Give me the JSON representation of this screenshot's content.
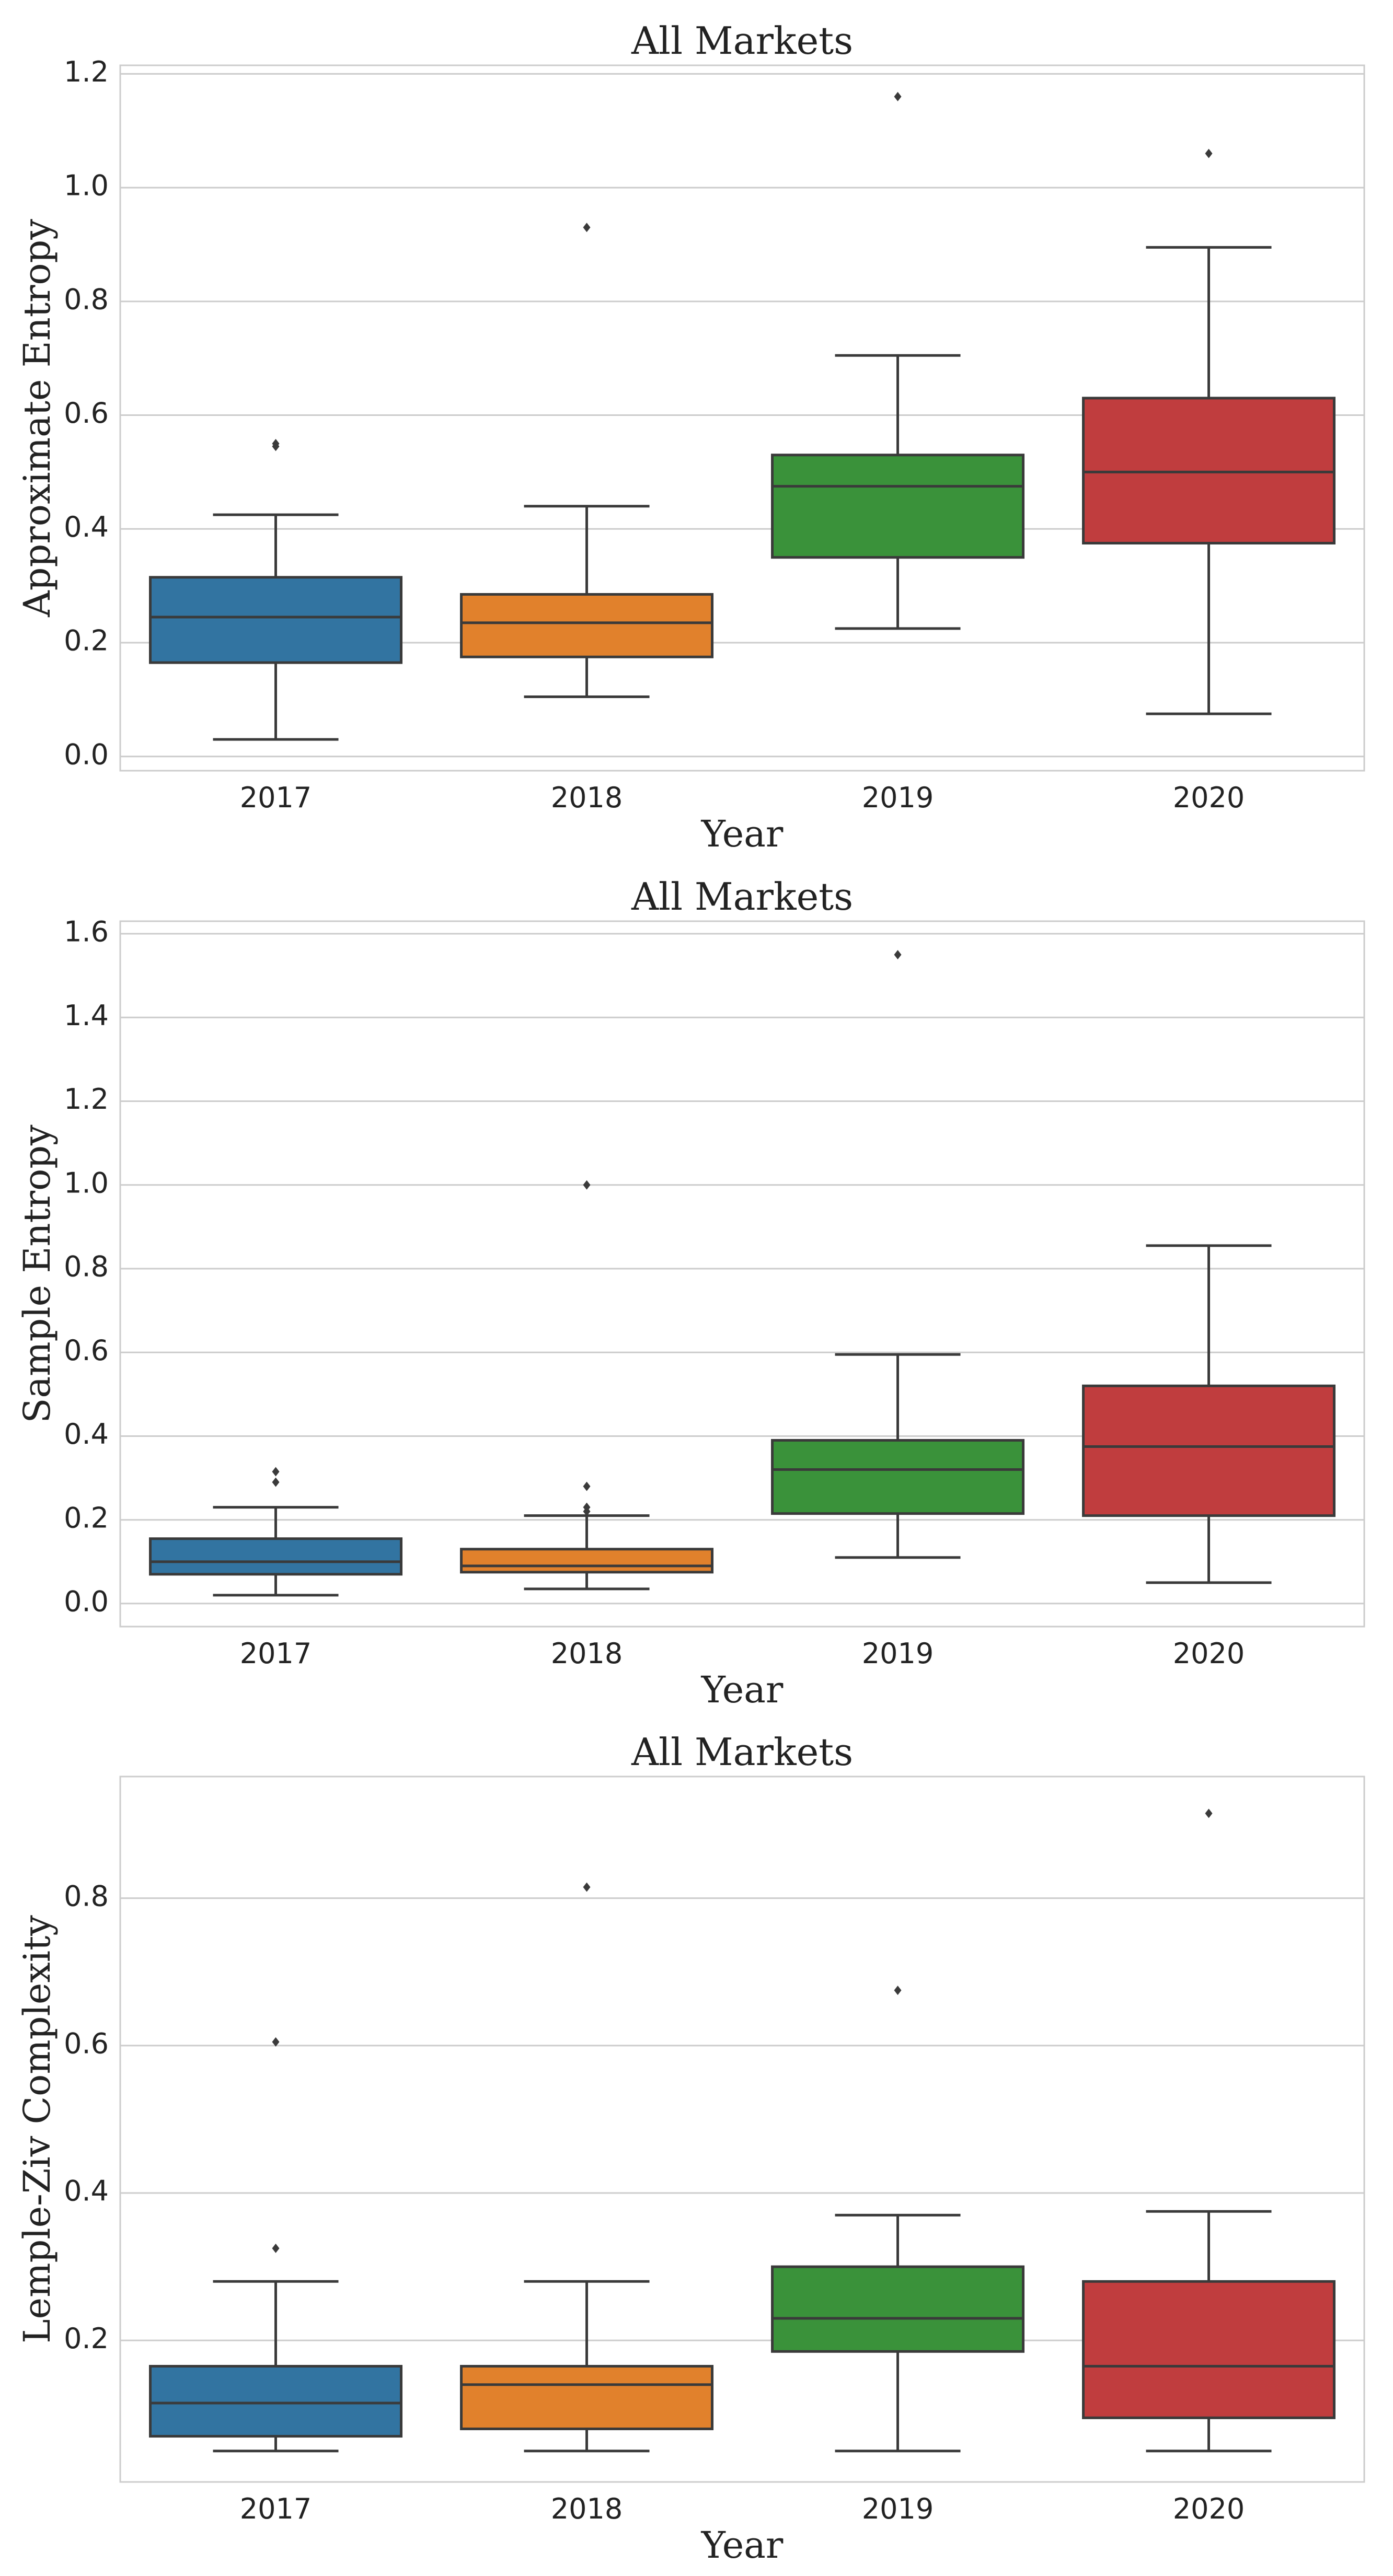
{
  "chart_data": [
    {
      "type": "box",
      "title": "All Markets",
      "xlabel": "Year",
      "ylabel": "Approximate Entropy",
      "categories": [
        "2017",
        "2018",
        "2019",
        "2020"
      ],
      "colors": [
        "#3274a1",
        "#e1812c",
        "#3a923a",
        "#c03d3e"
      ],
      "ylim": [
        -0.025,
        1.215
      ],
      "yticks": [
        0.0,
        0.2,
        0.4,
        0.6,
        0.8,
        1.0,
        1.2
      ],
      "ytick_labels": [
        "0.0",
        "0.2",
        "0.4",
        "0.6",
        "0.8",
        "1.0",
        "1.2"
      ],
      "boxes": [
        {
          "whislo": 0.03,
          "q1": 0.165,
          "med": 0.245,
          "q3": 0.315,
          "whishi": 0.425,
          "fliers": [
            0.545,
            0.55
          ]
        },
        {
          "whislo": 0.105,
          "q1": 0.175,
          "med": 0.235,
          "q3": 0.285,
          "whishi": 0.44,
          "fliers": [
            0.93
          ]
        },
        {
          "whislo": 0.225,
          "q1": 0.35,
          "med": 0.475,
          "q3": 0.53,
          "whishi": 0.705,
          "fliers": [
            1.16
          ]
        },
        {
          "whislo": 0.075,
          "q1": 0.375,
          "med": 0.5,
          "q3": 0.63,
          "whishi": 0.895,
          "fliers": [
            1.06
          ]
        }
      ]
    },
    {
      "type": "box",
      "title": "All Markets",
      "xlabel": "Year",
      "ylabel": "Sample Entropy",
      "categories": [
        "2017",
        "2018",
        "2019",
        "2020"
      ],
      "colors": [
        "#3274a1",
        "#e1812c",
        "#3a923a",
        "#c03d3e"
      ],
      "ylim": [
        -0.055,
        1.63
      ],
      "yticks": [
        0.0,
        0.2,
        0.4,
        0.6,
        0.8,
        1.0,
        1.2,
        1.4,
        1.6
      ],
      "ytick_labels": [
        "0.0",
        "0.2",
        "0.4",
        "0.6",
        "0.8",
        "1.0",
        "1.2",
        "1.4",
        "1.6"
      ],
      "boxes": [
        {
          "whislo": 0.02,
          "q1": 0.07,
          "med": 0.1,
          "q3": 0.155,
          "whishi": 0.23,
          "fliers": [
            0.29,
            0.315
          ]
        },
        {
          "whislo": 0.035,
          "q1": 0.075,
          "med": 0.09,
          "q3": 0.13,
          "whishi": 0.21,
          "fliers": [
            0.22,
            0.23,
            0.28,
            1.0
          ]
        },
        {
          "whislo": 0.11,
          "q1": 0.215,
          "med": 0.32,
          "q3": 0.39,
          "whishi": 0.595,
          "fliers": [
            1.55
          ]
        },
        {
          "whislo": 0.05,
          "q1": 0.21,
          "med": 0.375,
          "q3": 0.52,
          "whishi": 0.855,
          "fliers": []
        }
      ]
    },
    {
      "type": "box",
      "title": "All Markets",
      "xlabel": "Year",
      "ylabel": "Lemple-Ziv Complexity",
      "categories": [
        "2017",
        "2018",
        "2019",
        "2020"
      ],
      "colors": [
        "#3274a1",
        "#e1812c",
        "#3a923a",
        "#c03d3e"
      ],
      "ylim": [
        0.008,
        0.965
      ],
      "yticks": [
        0.2,
        0.4,
        0.6,
        0.8
      ],
      "ytick_labels": [
        "0.2",
        "0.4",
        "0.6",
        "0.8"
      ],
      "boxes": [
        {
          "whislo": 0.05,
          "q1": 0.07,
          "med": 0.115,
          "q3": 0.165,
          "whishi": 0.28,
          "fliers": [
            0.325,
            0.605
          ]
        },
        {
          "whislo": 0.05,
          "q1": 0.08,
          "med": 0.14,
          "q3": 0.165,
          "whishi": 0.28,
          "fliers": [
            0.815
          ]
        },
        {
          "whislo": 0.05,
          "q1": 0.185,
          "med": 0.23,
          "q3": 0.3,
          "whishi": 0.37,
          "fliers": [
            0.675
          ]
        },
        {
          "whislo": 0.05,
          "q1": 0.095,
          "med": 0.165,
          "q3": 0.28,
          "whishi": 0.375,
          "fliers": [
            0.915
          ]
        }
      ]
    }
  ]
}
